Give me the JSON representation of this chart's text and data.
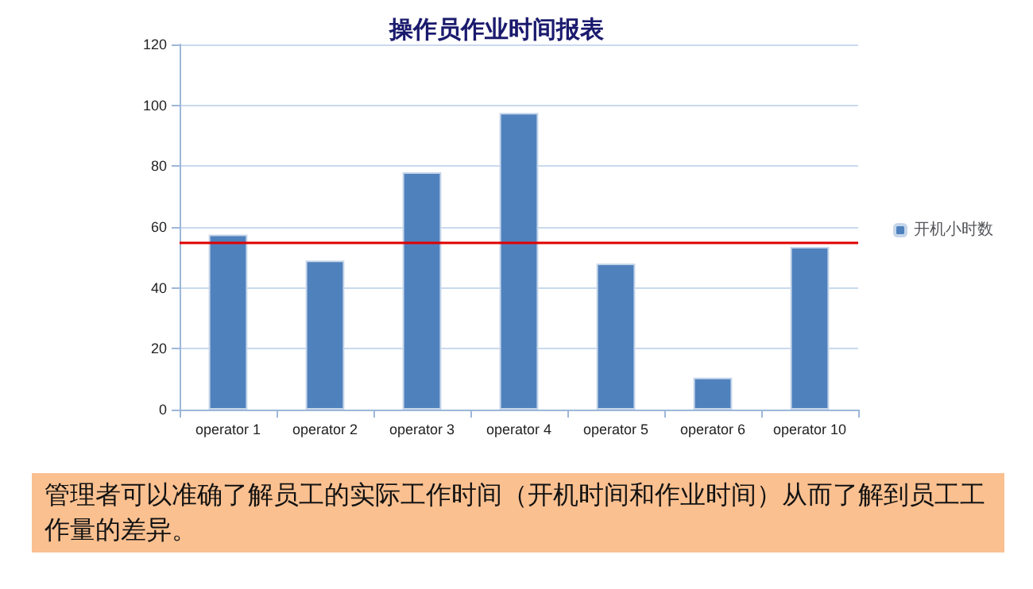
{
  "chart_data": {
    "type": "bar",
    "title": "操作员作业时间报表",
    "categories": [
      "operator 1",
      "operator 2",
      "operator 3",
      "operator 4",
      "operator 5",
      "operator 6",
      "operator 10"
    ],
    "series": [
      {
        "name": "开机小时数",
        "color": "#4f81bd",
        "values": [
          57.5,
          49,
          78,
          97.5,
          48,
          10.5,
          53.5
        ]
      }
    ],
    "ylim": [
      0,
      120
    ],
    "yticks": [
      0,
      20,
      40,
      60,
      80,
      100,
      120
    ],
    "grid": "y",
    "legend": "right",
    "ref_lines": [
      {
        "axis": "y",
        "value": 55,
        "color": "#e00000"
      }
    ],
    "annotations": [
      "管理者可以准确了解员工的实际工作时间（开机时间和作业时间）从而了解到员工工作量的差异。"
    ]
  }
}
